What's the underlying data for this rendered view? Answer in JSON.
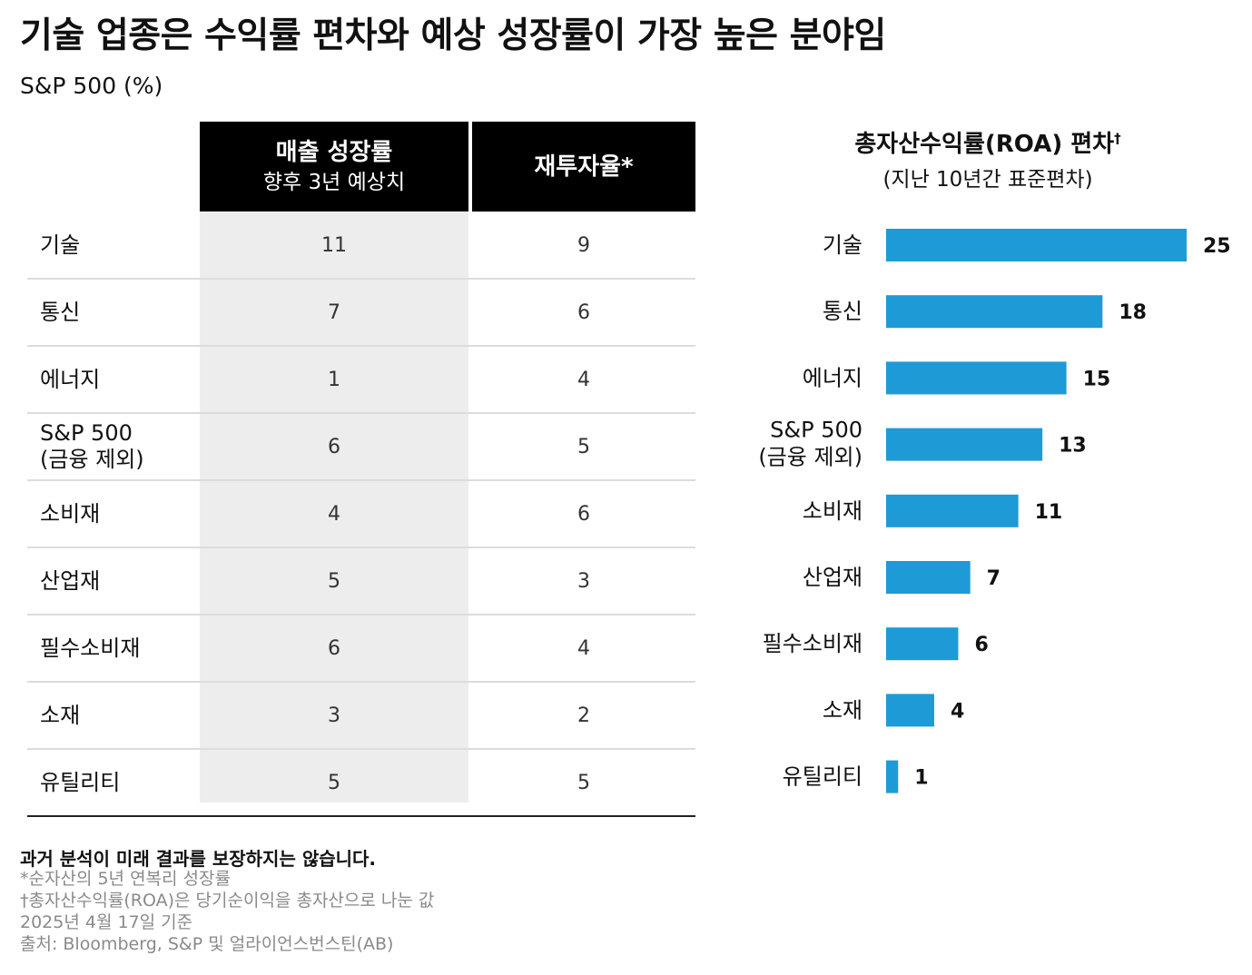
{
  "title": "기술 업종은 수익률 편차와 예상 성장률이 가장 높은 분야임",
  "subtitle": "S&P 500 (%)",
  "table": {
    "headers": {
      "growth_main": "매출 성장률",
      "growth_sub": "향후 3년 예상치",
      "reinvest": "재투자율*"
    },
    "rows": [
      {
        "name": "기술",
        "growth": "11",
        "reinvest": "9"
      },
      {
        "name": "통신",
        "growth": "7",
        "reinvest": "6"
      },
      {
        "name": "에너지",
        "growth": "1",
        "reinvest": "4"
      },
      {
        "name": "S&P 500\n(금융 제외)",
        "growth": "6",
        "reinvest": "5"
      },
      {
        "name": "소비재",
        "growth": "4",
        "reinvest": "6"
      },
      {
        "name": "산업재",
        "growth": "5",
        "reinvest": "3"
      },
      {
        "name": "필수소비재",
        "growth": "6",
        "reinvest": "4"
      },
      {
        "name": "소재",
        "growth": "3",
        "reinvest": "2"
      },
      {
        "name": "유틸리티",
        "growth": "5",
        "reinvest": "5"
      }
    ]
  },
  "chart_data": {
    "type": "bar",
    "orientation": "horizontal",
    "title": "총자산수익률(ROA) 편차",
    "title_mark": "†",
    "subtitle": "(지난 10년간 표준편차)",
    "categories": [
      "기술",
      "통신",
      "에너지",
      "S&P 500\n(금융 제외)",
      "소비재",
      "산업재",
      "필수소비재",
      "소재",
      "유틸리티"
    ],
    "values": [
      25,
      18,
      15,
      13,
      11,
      7,
      6,
      4,
      1
    ],
    "bar_color": "#1e9ad6",
    "xlim": [
      0,
      25
    ],
    "grid": false,
    "data_labels": true
  },
  "footer": {
    "disclaimer": "과거 분석이 미래 결과를 보장하지는 않습니다.",
    "notes": [
      "*순자산의 5년 연복리 성장률",
      "†총자산수익률(ROA)은 당기순이익을 총자산으로 나눈 값",
      "2025년 4월 17일 기준",
      "출처: Bloomberg, S&P 및 얼라이언스번스틴(AB)"
    ]
  }
}
